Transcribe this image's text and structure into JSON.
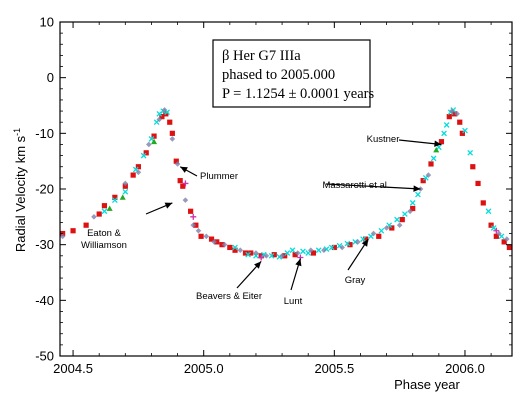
{
  "chart_data": {
    "type": "scatter",
    "xlabel": "Phase  year",
    "ylabel": "Radial Velocity  km s",
    "ylabel_sup": "-1",
    "xlim": [
      2004.45,
      2006.18
    ],
    "ylim": [
      -50,
      10
    ],
    "xticks": [
      2004.5,
      2005.0,
      2005.5,
      2006.0
    ],
    "xtick_labels": [
      "2004.5",
      "2005.0",
      "2005.5",
      "2006.0"
    ],
    "yticks": [
      10,
      0,
      -10,
      -20,
      -30,
      -40,
      -50
    ],
    "ytick_labels": [
      "10",
      "0",
      "-10",
      "-20",
      "-30",
      "-40",
      "-50"
    ],
    "info_box": {
      "line1": "β Her   G7 IIIa",
      "line2": "phased to 2005.000",
      "line3": "P = 1.1254 ± 0.0001 years"
    },
    "annotations": [
      {
        "text": "Plummer",
        "arrow_to": [
          2004.91,
          -16.0
        ]
      },
      {
        "text": "Eaton &",
        "text2": "Williamson",
        "arrow_to": [
          2004.88,
          -22.5
        ]
      },
      {
        "text": "Beavers & Eiter",
        "arrow_to": [
          2005.22,
          -33.0
        ]
      },
      {
        "text": "Lunt",
        "arrow_to": [
          2005.37,
          -32.5
        ]
      },
      {
        "text": "Gray",
        "arrow_to": [
          2005.63,
          -29.0
        ]
      },
      {
        "text": "Massarotti et al.",
        "arrow_to": [
          2005.83,
          -20.0
        ]
      },
      {
        "text": "Kustner",
        "arrow_to": [
          2005.91,
          -12.0
        ]
      }
    ],
    "series": [
      {
        "color": "#dd1111",
        "marker": "square",
        "points": [
          [
            2004.46,
            -28.0
          ],
          [
            2004.5,
            -27.5
          ],
          [
            2004.55,
            -26.5
          ],
          [
            2004.6,
            -24.5
          ],
          [
            2004.62,
            -23.0
          ],
          [
            2004.66,
            -21.5
          ],
          [
            2004.7,
            -19.5
          ],
          [
            2004.73,
            -17.5
          ],
          [
            2004.75,
            -16.0
          ],
          [
            2004.78,
            -13.5
          ],
          [
            2004.81,
            -10.5
          ],
          [
            2004.84,
            -7.0
          ],
          [
            2004.855,
            -6.5
          ],
          [
            2004.87,
            -8.0
          ],
          [
            2004.88,
            -10.0
          ],
          [
            2004.895,
            -15.0
          ],
          [
            2004.91,
            -18.5
          ],
          [
            2004.92,
            -19.5
          ],
          [
            2004.95,
            -24.0
          ],
          [
            2004.97,
            -26.5
          ],
          [
            2004.99,
            -28.5
          ],
          [
            2005.03,
            -29.0
          ],
          [
            2005.05,
            -29.5
          ],
          [
            2005.07,
            -30.0
          ],
          [
            2005.1,
            -30.5
          ],
          [
            2005.12,
            -31.0
          ],
          [
            2005.16,
            -31.5
          ],
          [
            2005.18,
            -31.5
          ],
          [
            2005.22,
            -32.0
          ],
          [
            2005.27,
            -31.8
          ],
          [
            2005.31,
            -32.0
          ],
          [
            2005.35,
            -31.8
          ],
          [
            2005.42,
            -31.5
          ],
          [
            2005.5,
            -30.5
          ],
          [
            2005.56,
            -30.0
          ],
          [
            2005.62,
            -29.0
          ],
          [
            2005.67,
            -28.5
          ],
          [
            2005.72,
            -27.0
          ],
          [
            2005.76,
            -25.5
          ],
          [
            2005.8,
            -23.5
          ],
          [
            2005.84,
            -18.5
          ],
          [
            2005.87,
            -15.5
          ],
          [
            2005.91,
            -11.5
          ],
          [
            2005.94,
            -7.0
          ],
          [
            2005.96,
            -6.5
          ],
          [
            2005.98,
            -8.0
          ],
          [
            2005.99,
            -10.0
          ],
          [
            2006.03,
            -16.0
          ],
          [
            2006.05,
            -19.0
          ],
          [
            2006.07,
            -22.5
          ],
          [
            2006.1,
            -26.5
          ],
          [
            2006.12,
            -28.5
          ],
          [
            2006.15,
            -29.5
          ],
          [
            2006.17,
            -30.5
          ]
        ]
      },
      {
        "color": "#00dddd",
        "marker": "cross",
        "points": [
          [
            2004.62,
            -24.0
          ],
          [
            2004.66,
            -22.0
          ],
          [
            2004.7,
            -20.5
          ],
          [
            2004.74,
            -16.5
          ],
          [
            2004.77,
            -14.0
          ],
          [
            2004.8,
            -11.0
          ],
          [
            2004.82,
            -8.0
          ],
          [
            2004.83,
            -6.5
          ],
          [
            2004.845,
            -6.0
          ],
          [
            2004.86,
            -6.2
          ],
          [
            2005.12,
            -30.5
          ],
          [
            2005.17,
            -31.8
          ],
          [
            2005.2,
            -32.0
          ],
          [
            2005.23,
            -31.8
          ],
          [
            2005.26,
            -32.0
          ],
          [
            2005.29,
            -32.2
          ],
          [
            2005.32,
            -31.5
          ],
          [
            2005.34,
            -31.0
          ],
          [
            2005.38,
            -31.2
          ],
          [
            2005.4,
            -31.5
          ],
          [
            2005.44,
            -31.0
          ],
          [
            2005.47,
            -30.8
          ],
          [
            2005.49,
            -30.5
          ],
          [
            2005.52,
            -30.2
          ],
          [
            2005.55,
            -29.8
          ],
          [
            2005.58,
            -29.5
          ],
          [
            2005.61,
            -29.0
          ],
          [
            2005.64,
            -28.5
          ],
          [
            2005.68,
            -27.5
          ],
          [
            2005.71,
            -26.5
          ],
          [
            2005.74,
            -25.5
          ],
          [
            2005.77,
            -24.5
          ],
          [
            2005.8,
            -22.5
          ],
          [
            2005.82,
            -21.0
          ],
          [
            2005.85,
            -18.0
          ],
          [
            2005.88,
            -14.5
          ],
          [
            2005.9,
            -12.5
          ],
          [
            2005.92,
            -10.0
          ],
          [
            2005.93,
            -8.5
          ],
          [
            2005.945,
            -6.2
          ],
          [
            2005.955,
            -5.8
          ],
          [
            2006.0,
            -9.5
          ],
          [
            2006.02,
            -13.5
          ],
          [
            2006.09,
            -24.0
          ],
          [
            2006.11,
            -27.0
          ],
          [
            2006.14,
            -28.5
          ]
        ]
      },
      {
        "color": "#7f7faa",
        "marker": "diamond",
        "points": [
          [
            2004.46,
            -28.5
          ],
          [
            2004.58,
            -25.0
          ],
          [
            2004.7,
            -19.0
          ],
          [
            2004.75,
            -17.0
          ],
          [
            2004.79,
            -12.0
          ],
          [
            2004.83,
            -7.5
          ],
          [
            2004.85,
            -5.8
          ],
          [
            2004.88,
            -11.0
          ],
          [
            2004.9,
            -15.5
          ],
          [
            2004.93,
            -22.0
          ],
          [
            2004.96,
            -26.5
          ],
          [
            2004.98,
            -27.5
          ],
          [
            2005.01,
            -28.5
          ],
          [
            2005.04,
            -29.5
          ],
          [
            2005.08,
            -30.0
          ],
          [
            2005.14,
            -31.0
          ],
          [
            2005.2,
            -31.5
          ],
          [
            2005.24,
            -32.0
          ],
          [
            2005.3,
            -32.0
          ],
          [
            2005.36,
            -31.5
          ],
          [
            2005.41,
            -31.0
          ],
          [
            2005.46,
            -31.0
          ],
          [
            2005.53,
            -30.5
          ],
          [
            2005.59,
            -29.5
          ],
          [
            2005.65,
            -28.0
          ],
          [
            2005.7,
            -27.0
          ],
          [
            2005.75,
            -26.5
          ],
          [
            2005.79,
            -24.0
          ],
          [
            2005.83,
            -20.0
          ],
          [
            2005.86,
            -17.5
          ],
          [
            2005.95,
            -6.0
          ],
          [
            2005.97,
            -6.5
          ],
          [
            2006.13,
            -28.0
          ],
          [
            2006.16,
            -29.0
          ]
        ]
      },
      {
        "color": "#22aa22",
        "marker": "triangle",
        "points": [
          [
            2004.64,
            -23.5
          ],
          [
            2004.69,
            -21.5
          ],
          [
            2004.81,
            -11.5
          ],
          [
            2005.89,
            -13.0
          ]
        ]
      },
      {
        "color": "#cc33aa",
        "marker": "plus",
        "points": [
          [
            2004.93,
            -19.0
          ],
          [
            2004.96,
            -25.0
          ],
          [
            2005.22,
            -32.3
          ],
          [
            2005.37,
            -32.3
          ],
          [
            2006.12,
            -27.5
          ]
        ]
      }
    ]
  }
}
